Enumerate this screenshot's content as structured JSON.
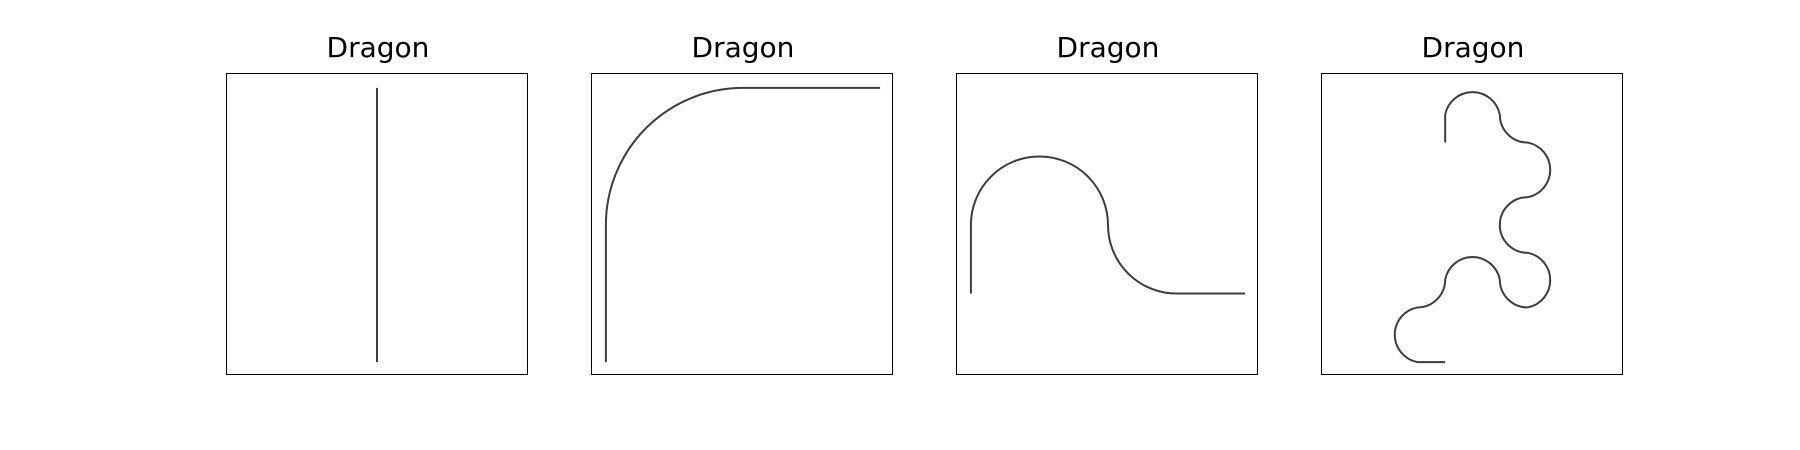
{
  "panels": [
    {
      "title": "Dragon",
      "iterations": 0
    },
    {
      "title": "Dragon",
      "iterations": 1
    },
    {
      "title": "Dragon",
      "iterations": 2
    },
    {
      "title": "Dragon",
      "iterations": 3
    }
  ],
  "colors": {
    "curve": "#3c3c3c",
    "frame": "#000000",
    "background": "#ffffff"
  }
}
